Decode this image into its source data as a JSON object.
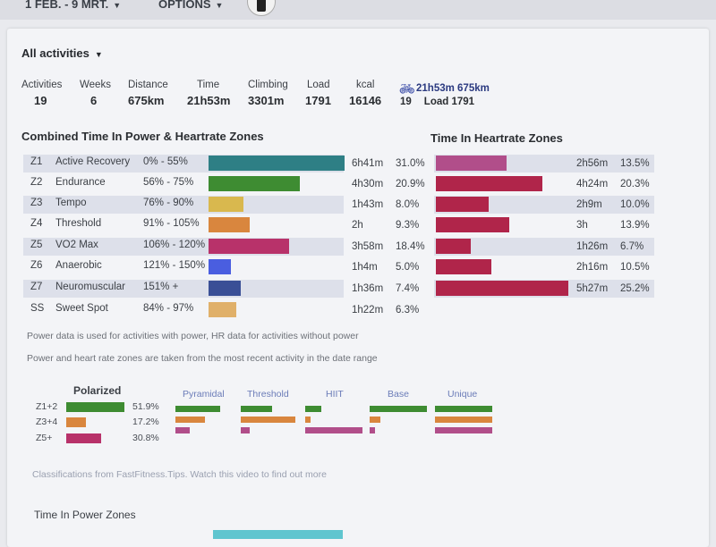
{
  "header": {
    "date_range": "1 FEB. - 9 MRT.",
    "options_label": "OPTIONS"
  },
  "filter": {
    "label": "All activities"
  },
  "stats": [
    {
      "label": "Activities",
      "value": "19"
    },
    {
      "label": "Weeks",
      "value": "6"
    },
    {
      "label": "Distance",
      "value": "675km"
    },
    {
      "label": "Time",
      "value": "21h53m"
    },
    {
      "label": "Climbing",
      "value": "3301m"
    },
    {
      "label": "Load",
      "value": "1791"
    },
    {
      "label": "kcal",
      "value": "16146"
    }
  ],
  "bike_summary": {
    "line1": "21h53m 675km",
    "count": "19",
    "load": "Load 1791",
    "icon": "bike-icon"
  },
  "power_zones": {
    "title": "Combined Time In Power & Heartrate Zones",
    "rows": [
      {
        "code": "Z1",
        "name": "Active Recovery",
        "range": "0% - 55%",
        "time": "6h41m",
        "pct": "31.0%",
        "color": "#2e7f85"
      },
      {
        "code": "Z2",
        "name": "Endurance",
        "range": "56% - 75%",
        "time": "4h30m",
        "pct": "20.9%",
        "color": "#3e8c32"
      },
      {
        "code": "Z3",
        "name": "Tempo",
        "range": "76% - 90%",
        "time": "1h43m",
        "pct": "8.0%",
        "color": "#d9b84e"
      },
      {
        "code": "Z4",
        "name": "Threshold",
        "range": "91% - 105%",
        "time": "2h",
        "pct": "9.3%",
        "color": "#d9863e"
      },
      {
        "code": "Z5",
        "name": "VO2 Max",
        "range": "106% - 120%",
        "time": "3h58m",
        "pct": "18.4%",
        "color": "#b8326a"
      },
      {
        "code": "Z6",
        "name": "Anaerobic",
        "range": "121% - 150%",
        "time": "1h4m",
        "pct": "5.0%",
        "color": "#4a5ee0"
      },
      {
        "code": "Z7",
        "name": "Neuromuscular",
        "range": "151% +",
        "time": "1h36m",
        "pct": "7.4%",
        "color": "#3a4f96"
      },
      {
        "code": "SS",
        "name": "Sweet Spot",
        "range": "84% - 97%",
        "time": "1h22m",
        "pct": "6.3%",
        "color": "#e0b06a"
      }
    ]
  },
  "hr_zones": {
    "title": "Time In Heartrate Zones",
    "rows": [
      {
        "time": "2h56m",
        "pct": "13.5%",
        "color": "#b14e8a"
      },
      {
        "time": "4h24m",
        "pct": "20.3%",
        "color": "#b0254a"
      },
      {
        "time": "2h9m",
        "pct": "10.0%",
        "color": "#b0254a"
      },
      {
        "time": "3h",
        "pct": "13.9%",
        "color": "#b0254a"
      },
      {
        "time": "1h26m",
        "pct": "6.7%",
        "color": "#b0254a"
      },
      {
        "time": "2h16m",
        "pct": "10.5%",
        "color": "#b0254a"
      },
      {
        "time": "5h27m",
        "pct": "25.2%",
        "color": "#b0254a"
      }
    ]
  },
  "notes": {
    "power_hr": "Power data is used for activities with power, HR data for activities without power",
    "zones_from": "Power and heart rate zones are taken from the most recent activity in the date range",
    "classification": "Classifications from FastFitness.Tips. Watch this video to find out more"
  },
  "polarized": {
    "title": "Polarized",
    "rows": [
      {
        "label": "Z1+2",
        "pct": "51.9%",
        "value": 51.9,
        "color": "#3e8c32"
      },
      {
        "label": "Z3+4",
        "pct": "17.2%",
        "value": 17.2,
        "color": "#d9863e"
      },
      {
        "label": "Z5+",
        "pct": "30.8%",
        "value": 30.8,
        "color": "#b8326a"
      }
    ]
  },
  "classifications": [
    {
      "name": "Pyramidal",
      "levels": [
        0.78,
        0.52,
        0.25
      ]
    },
    {
      "name": "Threshold",
      "levels": [
        0.55,
        0.95,
        0.15
      ]
    },
    {
      "name": "HIIT",
      "levels": [
        0.28,
        0.1,
        1.0
      ]
    },
    {
      "name": "Base",
      "levels": [
        1.0,
        0.18,
        0.1
      ]
    },
    {
      "name": "Unique",
      "levels": [
        1.0,
        1.0,
        1.0
      ]
    }
  ],
  "power_section": {
    "title": "Time In Power Zones"
  }
}
